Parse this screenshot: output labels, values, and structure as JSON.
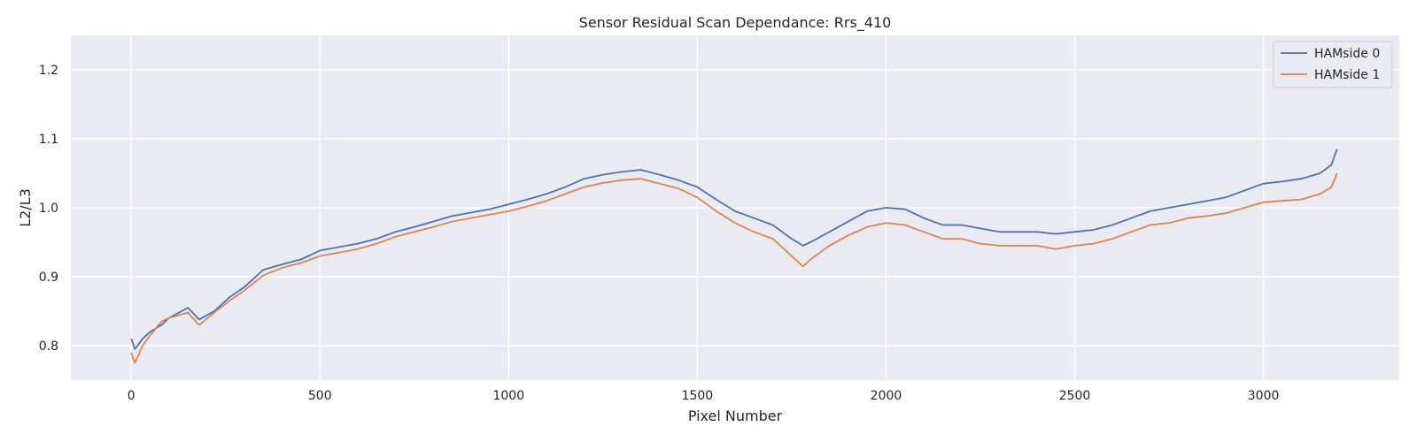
{
  "chart_data": {
    "type": "line",
    "title": "Sensor Residual Scan Dependance: Rrs_410",
    "xlabel": "Pixel Number",
    "ylabel": "L2/L3",
    "xlim": [
      -160,
      3360
    ],
    "ylim": [
      0.75,
      1.25
    ],
    "xticks": [
      0,
      500,
      1000,
      1500,
      2000,
      2500,
      3000
    ],
    "xtick_labels": [
      "0",
      "500",
      "1000",
      "1500",
      "2000",
      "2500",
      "3000"
    ],
    "yticks": [
      0.8,
      0.9,
      1.0,
      1.1,
      1.2
    ],
    "ytick_labels": [
      "0.8",
      "0.9",
      "1.0",
      "1.1",
      "1.2"
    ],
    "grid": true,
    "legend_position": "top-right",
    "background_color": "#eaeaf2",
    "series": [
      {
        "name": "HAMside 0",
        "color": "#4c72b0",
        "points": [
          [
            0,
            0.81
          ],
          [
            10,
            0.795
          ],
          [
            30,
            0.81
          ],
          [
            50,
            0.82
          ],
          [
            80,
            0.83
          ],
          [
            100,
            0.84
          ],
          [
            150,
            0.855
          ],
          [
            180,
            0.838
          ],
          [
            220,
            0.85
          ],
          [
            260,
            0.87
          ],
          [
            300,
            0.885
          ],
          [
            350,
            0.91
          ],
          [
            400,
            0.918
          ],
          [
            450,
            0.925
          ],
          [
            500,
            0.938
          ],
          [
            550,
            0.943
          ],
          [
            600,
            0.948
          ],
          [
            650,
            0.955
          ],
          [
            700,
            0.965
          ],
          [
            750,
            0.972
          ],
          [
            800,
            0.98
          ],
          [
            850,
            0.988
          ],
          [
            900,
            0.993
          ],
          [
            950,
            0.998
          ],
          [
            1000,
            1.005
          ],
          [
            1050,
            1.012
          ],
          [
            1100,
            1.02
          ],
          [
            1150,
            1.03
          ],
          [
            1200,
            1.042
          ],
          [
            1250,
            1.048
          ],
          [
            1300,
            1.052
          ],
          [
            1350,
            1.055
          ],
          [
            1400,
            1.048
          ],
          [
            1450,
            1.04
          ],
          [
            1500,
            1.03
          ],
          [
            1550,
            1.012
          ],
          [
            1600,
            0.995
          ],
          [
            1650,
            0.985
          ],
          [
            1700,
            0.975
          ],
          [
            1750,
            0.955
          ],
          [
            1780,
            0.945
          ],
          [
            1800,
            0.95
          ],
          [
            1850,
            0.965
          ],
          [
            1900,
            0.98
          ],
          [
            1950,
            0.995
          ],
          [
            2000,
            1.0
          ],
          [
            2050,
            0.998
          ],
          [
            2100,
            0.985
          ],
          [
            2150,
            0.975
          ],
          [
            2200,
            0.975
          ],
          [
            2250,
            0.97
          ],
          [
            2300,
            0.965
          ],
          [
            2350,
            0.965
          ],
          [
            2400,
            0.965
          ],
          [
            2450,
            0.962
          ],
          [
            2500,
            0.965
          ],
          [
            2550,
            0.968
          ],
          [
            2600,
            0.975
          ],
          [
            2650,
            0.985
          ],
          [
            2700,
            0.995
          ],
          [
            2750,
            1.0
          ],
          [
            2800,
            1.005
          ],
          [
            2850,
            1.01
          ],
          [
            2900,
            1.015
          ],
          [
            2950,
            1.025
          ],
          [
            3000,
            1.035
          ],
          [
            3050,
            1.038
          ],
          [
            3100,
            1.042
          ],
          [
            3150,
            1.05
          ],
          [
            3180,
            1.062
          ],
          [
            3195,
            1.085
          ]
        ]
      },
      {
        "name": "HAMside 1",
        "color": "#dd8452",
        "points": [
          [
            0,
            0.79
          ],
          [
            10,
            0.775
          ],
          [
            30,
            0.8
          ],
          [
            50,
            0.815
          ],
          [
            80,
            0.835
          ],
          [
            100,
            0.84
          ],
          [
            150,
            0.848
          ],
          [
            180,
            0.83
          ],
          [
            220,
            0.848
          ],
          [
            260,
            0.865
          ],
          [
            300,
            0.88
          ],
          [
            350,
            0.902
          ],
          [
            400,
            0.913
          ],
          [
            450,
            0.92
          ],
          [
            500,
            0.93
          ],
          [
            550,
            0.935
          ],
          [
            600,
            0.94
          ],
          [
            650,
            0.948
          ],
          [
            700,
            0.958
          ],
          [
            750,
            0.965
          ],
          [
            800,
            0.972
          ],
          [
            850,
            0.98
          ],
          [
            900,
            0.985
          ],
          [
            950,
            0.99
          ],
          [
            1000,
            0.995
          ],
          [
            1050,
            1.002
          ],
          [
            1100,
            1.01
          ],
          [
            1150,
            1.02
          ],
          [
            1200,
            1.03
          ],
          [
            1250,
            1.036
          ],
          [
            1300,
            1.04
          ],
          [
            1350,
            1.042
          ],
          [
            1400,
            1.035
          ],
          [
            1450,
            1.028
          ],
          [
            1500,
            1.015
          ],
          [
            1550,
            0.995
          ],
          [
            1600,
            0.978
          ],
          [
            1650,
            0.965
          ],
          [
            1700,
            0.955
          ],
          [
            1750,
            0.93
          ],
          [
            1780,
            0.915
          ],
          [
            1800,
            0.925
          ],
          [
            1850,
            0.945
          ],
          [
            1900,
            0.96
          ],
          [
            1950,
            0.972
          ],
          [
            2000,
            0.978
          ],
          [
            2050,
            0.975
          ],
          [
            2100,
            0.965
          ],
          [
            2150,
            0.955
          ],
          [
            2200,
            0.955
          ],
          [
            2250,
            0.948
          ],
          [
            2300,
            0.945
          ],
          [
            2350,
            0.945
          ],
          [
            2400,
            0.945
          ],
          [
            2450,
            0.94
          ],
          [
            2500,
            0.945
          ],
          [
            2550,
            0.948
          ],
          [
            2600,
            0.955
          ],
          [
            2650,
            0.965
          ],
          [
            2700,
            0.975
          ],
          [
            2750,
            0.978
          ],
          [
            2800,
            0.985
          ],
          [
            2850,
            0.988
          ],
          [
            2900,
            0.992
          ],
          [
            2950,
            1.0
          ],
          [
            3000,
            1.008
          ],
          [
            3050,
            1.01
          ],
          [
            3100,
            1.012
          ],
          [
            3150,
            1.02
          ],
          [
            3180,
            1.03
          ],
          [
            3195,
            1.05
          ]
        ]
      }
    ]
  }
}
